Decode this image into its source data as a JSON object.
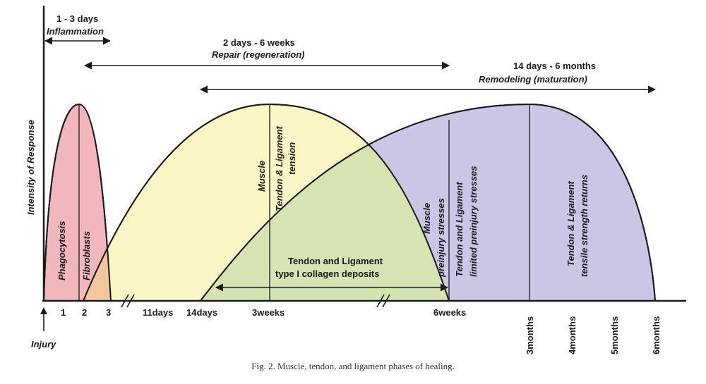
{
  "colors": {
    "inflammation": "#f2b7bd",
    "repair": "#faf6c6",
    "remodeling": "#c9c6e6",
    "repair_remodel_overlap": "#d6e3b2",
    "inflam_repair_overlap": "#f3c79e",
    "stroke": "#1a1a1a"
  },
  "chart_data": {
    "type": "area",
    "ylabel": "Intensity of Response",
    "injury_label": "Injury",
    "x_ticks": [
      "1",
      "2",
      "3",
      "11days",
      "14days",
      "3weeks",
      "6weeks",
      "3months",
      "4months",
      "5months",
      "6months"
    ],
    "phases": [
      {
        "name": "Inflammation",
        "duration": "1 - 3 days",
        "start": "0",
        "peak": "2",
        "end": "3"
      },
      {
        "name": "Repair (regeneration)",
        "duration": "2 days - 6 weeks",
        "start": "2",
        "peak": "3weeks",
        "end": "6weeks"
      },
      {
        "name": "Remodeling (maturation)",
        "duration": "14 days - 6 months",
        "start": "14days",
        "peak": "3months",
        "end": "6months"
      }
    ],
    "annotations": [
      "Phagocytosis",
      "Fibroblasts",
      "Muscle",
      "Tendon & Ligament",
      "tension",
      "Tendon and Ligament",
      "type I collagen deposits",
      "Muscle",
      "preinjury stresses",
      "Tendon and Ligament",
      "limited preinjury stresses",
      "Tendon & Ligament",
      "tensile strength returns"
    ]
  },
  "caption": "Fig. 2.   Muscle, tendon, and ligament phases of healing."
}
